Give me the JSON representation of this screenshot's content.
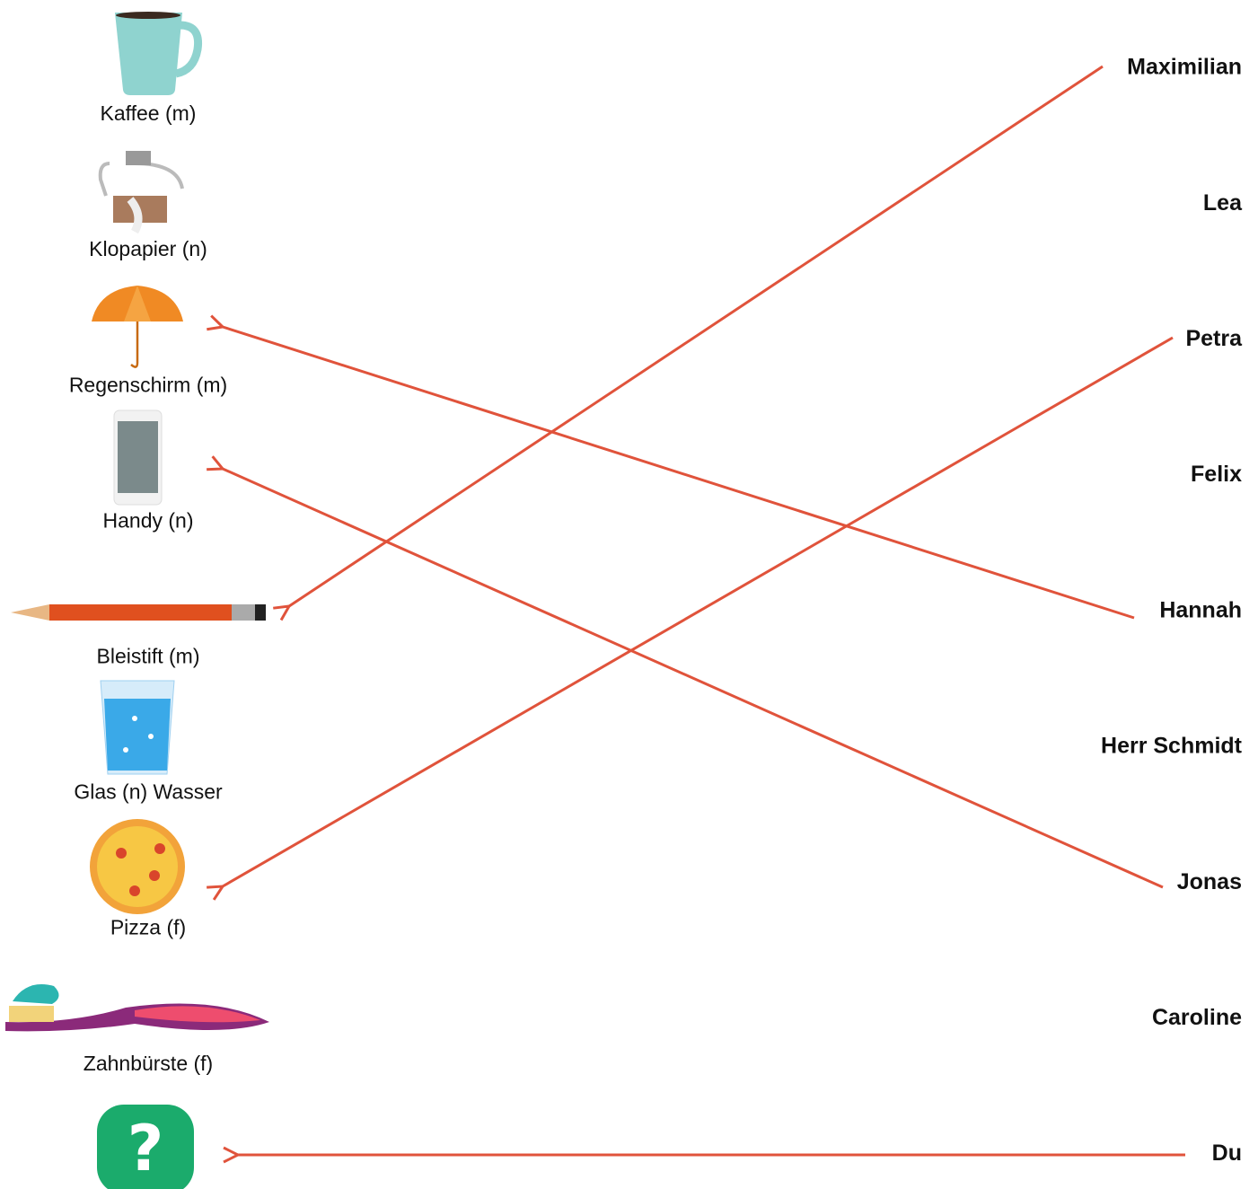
{
  "items": [
    "Kaffee (m)",
    "Klopapier (n)",
    "Regenschirm (m)",
    "Handy (n)",
    "Bleistift (m)",
    "Glas (n) Wasser",
    "Pizza (f)",
    "Zahnbürste (f)"
  ],
  "names": [
    "Maximilian",
    "Lea",
    "Petra",
    "Felix",
    "Hannah",
    "Herr Schmidt",
    "Jonas",
    "Caroline",
    "Du"
  ]
}
